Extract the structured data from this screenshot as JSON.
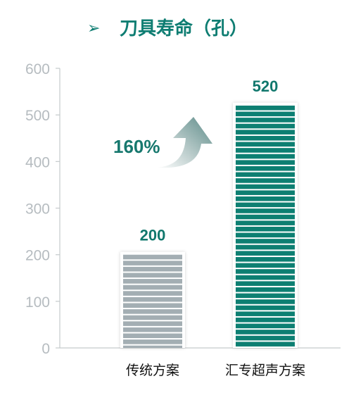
{
  "title": {
    "marker": "➢",
    "text": "刀具寿命（孔）"
  },
  "growth": {
    "label": "160%"
  },
  "colors": {
    "title": "#0e7d72",
    "axis": "#c5cacc",
    "tick_text": "#b6bcc0",
    "value_text": "#11786d",
    "bar_traditional": "#a3aeb3",
    "bar_huizhuan": "#0d7f72",
    "bar_stripe": "#ffffff",
    "arrow_dark": "#5c8b88",
    "arrow_light": "#ffffff"
  },
  "chart_data": {
    "type": "bar",
    "title": "刀具寿命（孔）",
    "categories": [
      "传统方案",
      "汇专超声方案"
    ],
    "values": [
      200,
      520
    ],
    "value_labels": [
      "200",
      "520"
    ],
    "ylim": [
      0,
      600
    ],
    "yticks": [
      0,
      100,
      200,
      300,
      400,
      500,
      600
    ],
    "xlabel": "",
    "ylabel": "",
    "grid": false,
    "annotation": "160%"
  }
}
